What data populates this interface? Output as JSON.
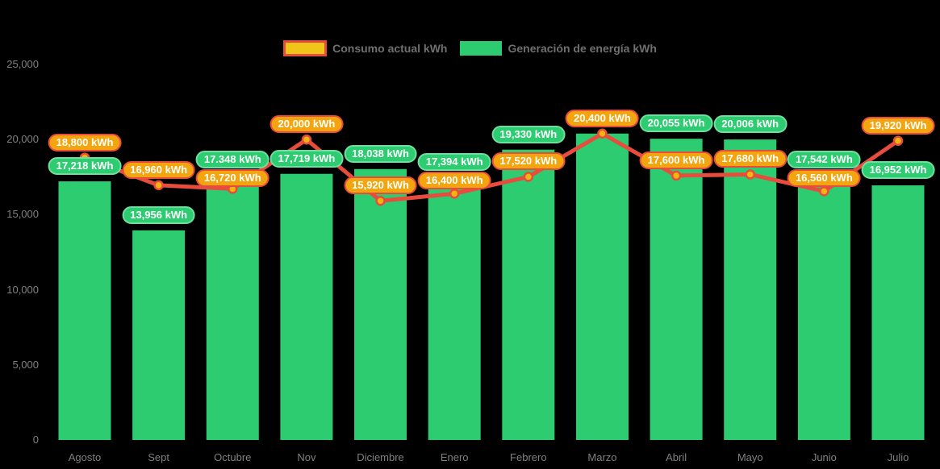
{
  "legend": {
    "consumo_label": "Consumo actual kWh",
    "generacion_label": "Generación de energía kWh"
  },
  "colors": {
    "background": "#000000",
    "bar": "#2ECC71",
    "bar_label_fill": "#2ECC71",
    "bar_label_border": "#6FDE9F",
    "line": "#E74C3C",
    "marker_fill": "#F2B50D",
    "consumo_label_fill": "#F2A50F",
    "consumo_label_border": "#E74C3C",
    "legend_swatch_consumo_fill": "#F0C419",
    "legend_swatch_consumo_border": "#E74C3C",
    "axis_text": "#808080",
    "legend_text": "#6F6F6F",
    "value_text": "#FFFFFF"
  },
  "chart_data": {
    "type": "bar",
    "subtype": "bar-with-line-overlay",
    "title": "",
    "xlabel": "",
    "ylabel": "",
    "categories": [
      "Agosto",
      "Sept",
      "Octubre",
      "Nov",
      "Diciembre",
      "Enero",
      "Febrero",
      "Marzo",
      "Abril",
      "Mayo",
      "Junio",
      "Julio"
    ],
    "series": [
      {
        "name": "Generación de energía kWh",
        "type": "bar",
        "color": "#2ECC71",
        "values": [
          17218,
          13956,
          17348,
          17719,
          18038,
          17394,
          19330,
          20400,
          20055,
          20006,
          17542,
          16952
        ],
        "labels": [
          "17,218 kWh",
          "13,956 kWh",
          "17.348 kWh",
          "17,719 kWh",
          "18,038 kWh",
          "17,394 kWh",
          "19,330 kWh",
          null,
          "20,055 kWh",
          "20,006 kWh",
          "17,542 kWh",
          "16,952 kWh"
        ]
      },
      {
        "name": "Consumo actual kWh",
        "type": "line",
        "color": "#E74C3C",
        "marker_fill": "#F2B50D",
        "values": [
          18800,
          16960,
          16720,
          20000,
          15920,
          16400,
          17520,
          20400,
          17600,
          17680,
          16560,
          19920
        ],
        "labels": [
          "18,800 kWh",
          "16,960 kWh",
          "16,720 kWh",
          "20,000 kWh",
          "15,920 kWh",
          "16,400 kWh",
          "17,520 kWh",
          "20,400 kWh",
          "17,600 kWh",
          "17,680 kWh",
          "16,560 kWh",
          "19,920 kWh"
        ]
      }
    ],
    "ylim": [
      0,
      25000
    ],
    "yticks": [
      "0",
      "5,000",
      "10,000",
      "15,000",
      "20,000",
      "25,000"
    ],
    "grid": false,
    "legend_position": "top"
  }
}
